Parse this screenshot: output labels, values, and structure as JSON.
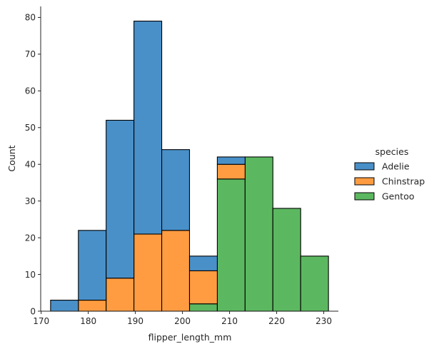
{
  "chart_data": {
    "type": "bar",
    "stacked": true,
    "title": "",
    "xlabel": "flipper_length_mm",
    "ylabel": "Count",
    "xlim": [
      169.9,
      233.1
    ],
    "ylim": [
      0,
      83
    ],
    "xticks": [
      170,
      180,
      190,
      200,
      210,
      220,
      230
    ],
    "yticks": [
      0,
      10,
      20,
      30,
      40,
      50,
      60,
      70,
      80
    ],
    "bin_edges": [
      172.0,
      177.9,
      183.8,
      189.7,
      195.6,
      201.5,
      207.4,
      213.3,
      219.2,
      225.1,
      231.0
    ],
    "legend": {
      "title": "species",
      "placement": "right"
    },
    "series": [
      {
        "name": "Gentoo",
        "color": "#55a868",
        "values": [
          0,
          0,
          0,
          0,
          0,
          2,
          36,
          42,
          28,
          15
        ]
      },
      {
        "name": "Chinstrap",
        "color": "#ff9f4a",
        "values": [
          0,
          3,
          9,
          21,
          22,
          9,
          4,
          0,
          0,
          0
        ]
      },
      {
        "name": "Adelie",
        "color": "#5f9ed1",
        "values": [
          3,
          19,
          43,
          58,
          22,
          4,
          2,
          0,
          0,
          0
        ]
      }
    ],
    "legend_order": [
      "Adelie",
      "Chinstrap",
      "Gentoo"
    ],
    "bar_fill_colors": {
      "Adelie": "#4a90c8",
      "Chinstrap": "#ff9c41",
      "Gentoo": "#5cb860"
    },
    "grid": false
  }
}
